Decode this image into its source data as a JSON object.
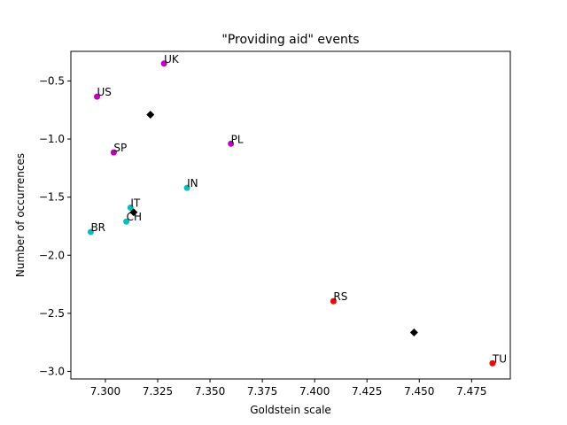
{
  "chart_data": {
    "type": "scatter",
    "title": "\"Providing aid\" events",
    "xlabel": "Goldstein scale",
    "ylabel": "Number of occurrences",
    "xlim": [
      7.2835,
      7.4935
    ],
    "ylim": [
      -3.065,
      -0.245
    ],
    "xticks": [
      7.3,
      7.325,
      7.35,
      7.375,
      7.4,
      7.425,
      7.45,
      7.475
    ],
    "xtick_labels": [
      "7.300",
      "7.325",
      "7.350",
      "7.375",
      "7.400",
      "7.425",
      "7.450",
      "7.475"
    ],
    "yticks": [
      -0.5,
      -1.0,
      -1.5,
      -2.0,
      -2.5,
      -3.0
    ],
    "ytick_labels": [
      "−0.5",
      "−1.0",
      "−1.5",
      "−2.0",
      "−2.5",
      "−3.0"
    ],
    "grid": false,
    "colors": {
      "magenta": "#bf00bf",
      "cyan": "#00bfbf",
      "red": "#ff0000",
      "centroid": "#000000"
    },
    "points": [
      {
        "label": "UK",
        "x": 7.328,
        "y": -0.35,
        "color": "magenta"
      },
      {
        "label": "US",
        "x": 7.296,
        "y": -0.635,
        "color": "magenta"
      },
      {
        "label": "SP",
        "x": 7.304,
        "y": -1.115,
        "color": "magenta"
      },
      {
        "label": "PL",
        "x": 7.36,
        "y": -1.04,
        "color": "magenta"
      },
      {
        "label": "IN",
        "x": 7.339,
        "y": -1.42,
        "color": "cyan"
      },
      {
        "label": "IT",
        "x": 7.312,
        "y": -1.59,
        "color": "cyan"
      },
      {
        "label": "CH",
        "x": 7.31,
        "y": -1.71,
        "color": "cyan"
      },
      {
        "label": "BR",
        "x": 7.293,
        "y": -1.8,
        "color": "cyan"
      },
      {
        "label": "RS",
        "x": 7.409,
        "y": -2.395,
        "color": "red"
      },
      {
        "label": "TU",
        "x": 7.485,
        "y": -2.93,
        "color": "red"
      }
    ],
    "centroids": [
      {
        "x": 7.3215,
        "y": -0.79
      },
      {
        "x": 7.3135,
        "y": -1.63
      },
      {
        "x": 7.4475,
        "y": -2.665
      }
    ]
  }
}
